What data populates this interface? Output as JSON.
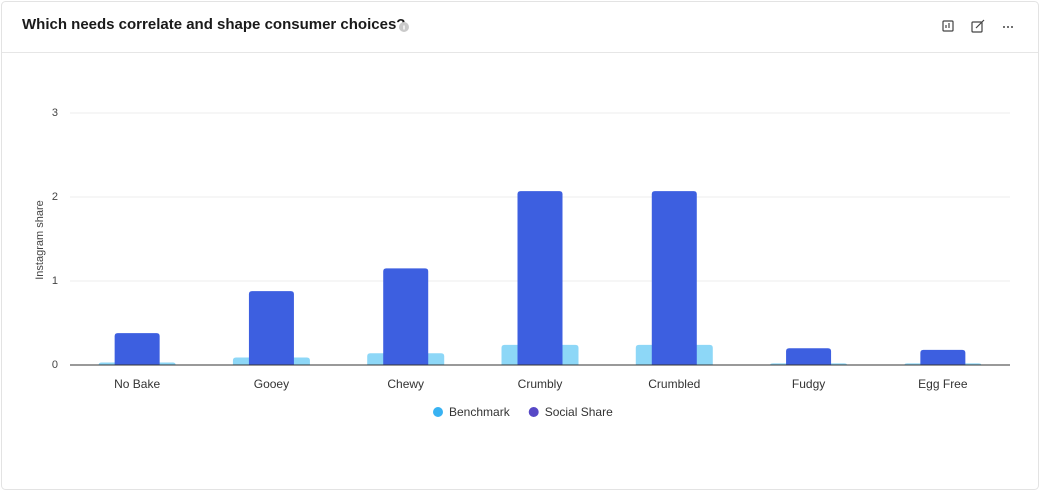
{
  "chart_data": {
    "type": "bar",
    "title": "Which needs correlate and shape consumer choices?",
    "y_label": "Instagram share",
    "categories": [
      "No Bake",
      "Gooey",
      "Chewy",
      "Crumbly",
      "Crumbled",
      "Fudgy",
      "Egg Free"
    ],
    "series": [
      {
        "name": "Benchmark",
        "color": "#8dd7f7",
        "legend_color": "#38b2f2",
        "values": [
          0.03,
          0.09,
          0.14,
          0.24,
          0.24,
          0.02,
          0.02
        ]
      },
      {
        "name": "Social Share",
        "color": "#3d5fe0",
        "legend_color": "#5648c6",
        "values": [
          0.38,
          0.88,
          1.15,
          2.07,
          2.07,
          0.2,
          0.18
        ]
      }
    ],
    "ylim": [
      0,
      3
    ],
    "yticks": [
      0,
      1,
      2,
      3
    ],
    "grid": true
  }
}
